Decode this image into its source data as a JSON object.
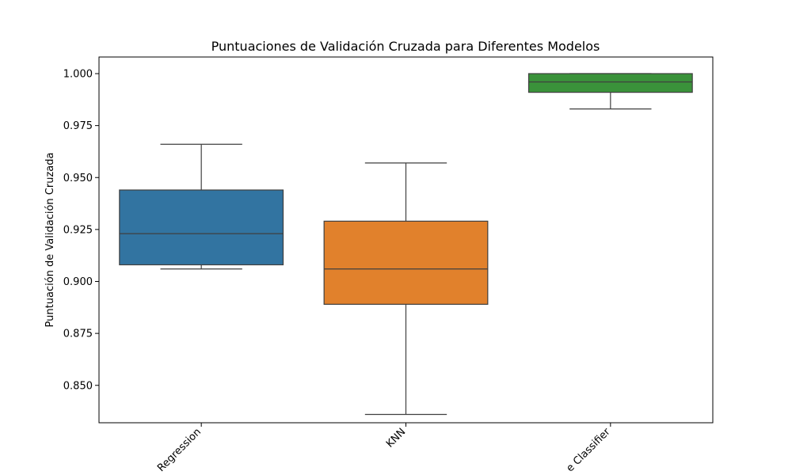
{
  "chart_data": {
    "type": "box",
    "title": "Puntuaciones de Validación Cruzada para Diferentes Modelos",
    "xlabel": "",
    "ylabel": "Puntuación de Validación Cruzada",
    "ylim": [
      0.832,
      1.008
    ],
    "yticks": [
      "0.850",
      "0.875",
      "0.900",
      "0.925",
      "0.950",
      "0.975",
      "1.000"
    ],
    "grid": false,
    "categories": [
      "Regression",
      "KNN",
      "e Classifier"
    ],
    "boxes": [
      {
        "category": "Regression",
        "color": "#3274a1",
        "whisker_low": 0.906,
        "q1": 0.908,
        "median": 0.923,
        "q3": 0.944,
        "whisker_high": 0.966
      },
      {
        "category": "KNN",
        "color": "#e1812c",
        "whisker_low": 0.836,
        "q1": 0.889,
        "median": 0.906,
        "q3": 0.929,
        "whisker_high": 0.957
      },
      {
        "category": "e Classifier",
        "color": "#3a923a",
        "whisker_low": 0.983,
        "q1": 0.991,
        "median": 0.996,
        "q3": 1.0,
        "whisker_high": 1.0
      }
    ]
  }
}
